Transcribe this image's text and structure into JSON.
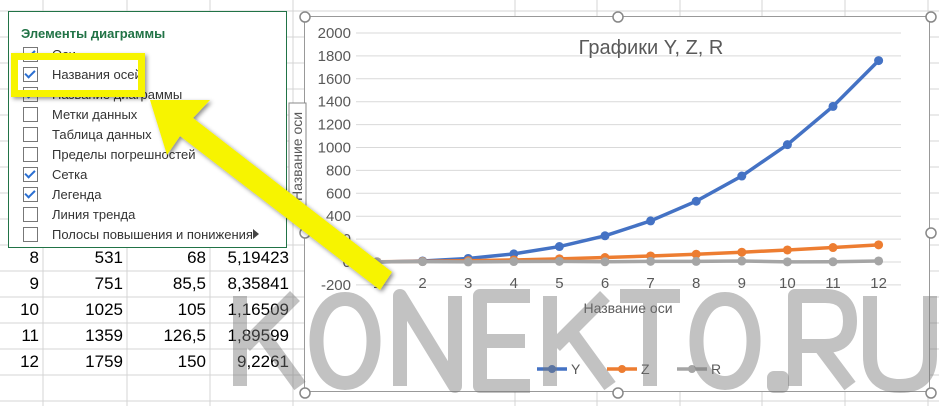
{
  "sheet": {
    "rows": [
      [
        "8",
        "531",
        "68",
        "5,19423"
      ],
      [
        "9",
        "751",
        "85,5",
        "8,35841"
      ],
      [
        "10",
        "1025",
        "105",
        "1,16509"
      ],
      [
        "11",
        "1359",
        "126,5",
        "1,89599"
      ],
      [
        "12",
        "1759",
        "150",
        "9,2261"
      ]
    ]
  },
  "popup": {
    "title": "Элементы диаграммы",
    "items": [
      {
        "label": "Оси",
        "checked": true
      },
      {
        "label": "Названия осей",
        "checked": true
      },
      {
        "label": "Название диаграммы",
        "checked": true
      },
      {
        "label": "Метки данных",
        "checked": false
      },
      {
        "label": "Таблица данных",
        "checked": false
      },
      {
        "label": "Пределы погрешностей",
        "checked": false
      },
      {
        "label": "Сетка",
        "checked": true
      },
      {
        "label": "Легенда",
        "checked": true
      },
      {
        "label": "Линия тренда",
        "checked": false
      },
      {
        "label": "Полосы повышения и понижения",
        "checked": false,
        "submenu": true
      }
    ]
  },
  "callout_color": "#f7f400",
  "watermark": "KONEKTO.RU",
  "chart_data": {
    "type": "line",
    "title": "Графики Y, Z, R",
    "xlabel": "Название оси",
    "ylabel": "Название оси",
    "categories": [
      "1",
      "2",
      "3",
      "4",
      "5",
      "6",
      "7",
      "8",
      "9",
      "10",
      "11",
      "12"
    ],
    "ylim": [
      -200,
      2000
    ],
    "yticks": [
      "-200",
      "0",
      "200",
      "400",
      "600",
      "800",
      "1000",
      "1200",
      "1400",
      "1600",
      "1800",
      "2000"
    ],
    "grid": true,
    "legend": "bottom",
    "series": [
      {
        "name": "Y",
        "color": "#4472c4",
        "values": [
          -1,
          9,
          31,
          71,
          135,
          229,
          359,
          531,
          751,
          1025,
          1359,
          1759
        ]
      },
      {
        "name": "Z",
        "color": "#ed7d31",
        "values": [
          1.5,
          5,
          10.5,
          18,
          27.5,
          39,
          52.5,
          68,
          85.5,
          105,
          126.5,
          150
        ]
      },
      {
        "name": "R",
        "color": "#a5a5a5",
        "values": [
          2,
          3,
          1,
          4,
          6,
          2,
          6,
          5.19,
          8.36,
          1.17,
          1.9,
          9.23
        ]
      }
    ]
  }
}
